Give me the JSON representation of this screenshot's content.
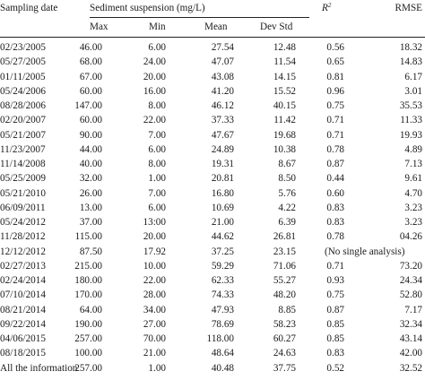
{
  "header": {
    "sampling_date": "Sampling date",
    "sediment_suspension": "Sediment suspension (mg/L)",
    "r2_base": "R",
    "r2_sup": "2",
    "rmse": "RMSE",
    "max": "Max",
    "min": "Min",
    "mean": "Mean",
    "dev_std": "Dev Std"
  },
  "rows": [
    {
      "date": "02/23/2005",
      "max": "46.00",
      "min": "6.00",
      "mean": "27.54",
      "dev": "12.48",
      "r2": "0.56",
      "rmse": "18.32"
    },
    {
      "date": "05/27/2005",
      "max": "68.00",
      "min": "24.00",
      "mean": "47.07",
      "dev": "11.54",
      "r2": "0.65",
      "rmse": "14.83"
    },
    {
      "date": "01/11/2005",
      "max": "67.00",
      "min": "20.00",
      "mean": "43.08",
      "dev": "14.15",
      "r2": "0.81",
      "rmse": "6.17"
    },
    {
      "date": "05/24/2006",
      "max": "60.00",
      "min": "16.00",
      "mean": "41.20",
      "dev": "15.52",
      "r2": "0.96",
      "rmse": "3.01"
    },
    {
      "date": "08/28/2006",
      "max": "147.00",
      "min": "8.00",
      "mean": "46.12",
      "dev": "40.15",
      "r2": "0.75",
      "rmse": "35.53"
    },
    {
      "date": "02/20/2007",
      "max": "60.00",
      "min": "22.00",
      "mean": "37.33",
      "dev": "11.42",
      "r2": "0.71",
      "rmse": "11.33"
    },
    {
      "date": "05/21/2007",
      "max": "90.00",
      "min": "7.00",
      "mean": "47.67",
      "dev": "19.68",
      "r2": "0.71",
      "rmse": "19.93"
    },
    {
      "date": "11/23/2007",
      "max": "44.00",
      "min": "6.00",
      "mean": "24.89",
      "dev": "10.38",
      "r2": "0.78",
      "rmse": "4.89"
    },
    {
      "date": "11/14/2008",
      "max": "40.00",
      "min": "8.00",
      "mean": "19.31",
      "dev": "8.67",
      "r2": "0.87",
      "rmse": "7.13"
    },
    {
      "date": "05/25/2009",
      "max": "32.00",
      "min": "1.00",
      "mean": "20.81",
      "dev": "8.50",
      "r2": "0.44",
      "rmse": "9.61"
    },
    {
      "date": "05/21/2010",
      "max": "26.00",
      "min": "7.00",
      "mean": "16.80",
      "dev": "5.76",
      "r2": "0.60",
      "rmse": "4.70"
    },
    {
      "date": "06/09/2011",
      "max": "13.00",
      "min": "6.00",
      "mean": "10.69",
      "dev": "4.22",
      "r2": "0.83",
      "rmse": "3.23"
    },
    {
      "date": "05/24/2012",
      "max": "37.00",
      "min": "13:00",
      "mean": "21.00",
      "dev": "6.39",
      "r2": "0.83",
      "rmse": "3.23"
    },
    {
      "date": "11/28/2012",
      "max": "115.00",
      "min": "20.00",
      "mean": "44.62",
      "dev": "26.81",
      "r2": "0.78",
      "rmse": "04.26"
    },
    {
      "date": "12/12/2012",
      "max": "87.50",
      "min": "17.92",
      "mean": "37.25",
      "dev": "23.15",
      "note": "(No single analysis)"
    },
    {
      "date": "02/27/2013",
      "max": "215.00",
      "min": "10.00",
      "mean": "59.29",
      "dev": "71.06",
      "r2": "0.71",
      "rmse": "73.20"
    },
    {
      "date": "02/24/2014",
      "max": "180.00",
      "min": "22.00",
      "mean": "62.33",
      "dev": "55.27",
      "r2": "0.93",
      "rmse": "24.34"
    },
    {
      "date": "07/10/2014",
      "max": "170.00",
      "min": "28.00",
      "mean": "74.33",
      "dev": "48.20",
      "r2": "0.75",
      "rmse": "52.80"
    },
    {
      "date": "08/21/2014",
      "max": "64.00",
      "min": "34.00",
      "mean": "47.93",
      "dev": "8.85",
      "r2": "0.87",
      "rmse": "7.17"
    },
    {
      "date": "09/22/2014",
      "max": "190.00",
      "min": "27.00",
      "mean": "78.69",
      "dev": "58.23",
      "r2": "0.85",
      "rmse": "32.34"
    },
    {
      "date": "04/06/2015",
      "max": "257.00",
      "min": "70.00",
      "mean": "118.00",
      "dev": "60.27",
      "r2": "0.85",
      "rmse": "43.14"
    },
    {
      "date": "08/18/2015",
      "max": "100.00",
      "min": "21.00",
      "mean": "48.64",
      "dev": "24.63",
      "r2": "0.83",
      "rmse": "42.00"
    },
    {
      "date": "All the information",
      "max": "257.00",
      "min": "1.00",
      "mean": "40.48",
      "dev": "37.75",
      "r2": "0.52",
      "rmse": "32.52"
    }
  ]
}
